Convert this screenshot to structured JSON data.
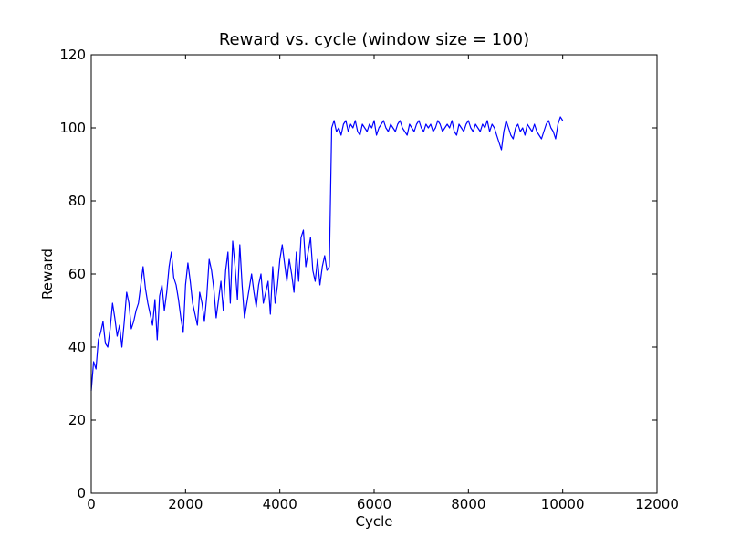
{
  "chart_data": {
    "type": "line",
    "title": "Reward vs. cycle (window size = 100)",
    "xlabel": "Cycle",
    "ylabel": "Reward",
    "xlim": [
      0,
      12000
    ],
    "ylim": [
      0,
      120
    ],
    "xticks": [
      0,
      2000,
      4000,
      6000,
      8000,
      10000,
      12000
    ],
    "yticks": [
      0,
      20,
      40,
      60,
      80,
      100,
      120
    ],
    "grid": false,
    "legend": "none",
    "series": [
      {
        "color": "#0000ff",
        "x": [
          0,
          50,
          100,
          150,
          200,
          250,
          300,
          350,
          400,
          450,
          500,
          550,
          600,
          650,
          700,
          750,
          800,
          850,
          900,
          950,
          1000,
          1050,
          1100,
          1150,
          1200,
          1250,
          1300,
          1350,
          1400,
          1450,
          1500,
          1550,
          1600,
          1650,
          1700,
          1750,
          1800,
          1850,
          1900,
          1950,
          2000,
          2050,
          2100,
          2150,
          2200,
          2250,
          2300,
          2350,
          2400,
          2450,
          2500,
          2550,
          2600,
          2650,
          2700,
          2750,
          2800,
          2850,
          2900,
          2950,
          3000,
          3050,
          3100,
          3150,
          3200,
          3250,
          3300,
          3350,
          3400,
          3450,
          3500,
          3550,
          3600,
          3650,
          3700,
          3750,
          3800,
          3850,
          3900,
          3950,
          4000,
          4050,
          4100,
          4150,
          4200,
          4250,
          4300,
          4350,
          4400,
          4450,
          4500,
          4550,
          4600,
          4650,
          4700,
          4750,
          4800,
          4850,
          4900,
          4950,
          5000,
          5050,
          5100,
          5150,
          5200,
          5250,
          5300,
          5350,
          5400,
          5450,
          5500,
          5550,
          5600,
          5650,
          5700,
          5750,
          5800,
          5850,
          5900,
          5950,
          6000,
          6050,
          6100,
          6150,
          6200,
          6250,
          6300,
          6350,
          6400,
          6450,
          6500,
          6550,
          6600,
          6650,
          6700,
          6750,
          6800,
          6850,
          6900,
          6950,
          7000,
          7050,
          7100,
          7150,
          7200,
          7250,
          7300,
          7350,
          7400,
          7450,
          7500,
          7550,
          7600,
          7650,
          7700,
          7750,
          7800,
          7850,
          7900,
          7950,
          8000,
          8050,
          8100,
          8150,
          8200,
          8250,
          8300,
          8350,
          8400,
          8450,
          8500,
          8550,
          8600,
          8650,
          8700,
          8750,
          8800,
          8850,
          8900,
          8950,
          9000,
          9050,
          9100,
          9150,
          9200,
          9250,
          9300,
          9350,
          9400,
          9450,
          9500,
          9550,
          9600,
          9650,
          9700,
          9750,
          9800,
          9850,
          9900,
          9950,
          10000
        ],
        "y": [
          28,
          36,
          34,
          42,
          44,
          47,
          41,
          40,
          45,
          52,
          48,
          43,
          46,
          40,
          47,
          55,
          52,
          45,
          47,
          50,
          52,
          57,
          62,
          56,
          52,
          49,
          46,
          53,
          42,
          54,
          57,
          50,
          55,
          62,
          66,
          59,
          57,
          53,
          48,
          44,
          57,
          63,
          58,
          52,
          49,
          46,
          55,
          52,
          47,
          54,
          64,
          61,
          56,
          48,
          53,
          58,
          50,
          61,
          66,
          52,
          69,
          62,
          53,
          68,
          57,
          48,
          52,
          56,
          60,
          55,
          51,
          57,
          60,
          52,
          55,
          58,
          49,
          62,
          52,
          57,
          64,
          68,
          63,
          58,
          64,
          60,
          55,
          66,
          58,
          70,
          72,
          62,
          66,
          70,
          61,
          58,
          64,
          57,
          62,
          65,
          61,
          62,
          100,
          102,
          99,
          100,
          98,
          101,
          102,
          99,
          101,
          100,
          102,
          99,
          98,
          101,
          100,
          99,
          101,
          100,
          102,
          98,
          100,
          101,
          102,
          100,
          99,
          101,
          100,
          99,
          101,
          102,
          100,
          99,
          98,
          101,
          100,
          99,
          101,
          102,
          100,
          99,
          101,
          100,
          101,
          99,
          100,
          102,
          101,
          99,
          100,
          101,
          100,
          102,
          99,
          98,
          101,
          100,
          99,
          101,
          102,
          100,
          99,
          101,
          100,
          99,
          101,
          100,
          102,
          99,
          101,
          100,
          98,
          96,
          94,
          99,
          102,
          100,
          98,
          97,
          100,
          101,
          99,
          100,
          98,
          101,
          100,
          99,
          101,
          99,
          98,
          97,
          99,
          101,
          102,
          100,
          99,
          97,
          101,
          103,
          102
        ]
      }
    ]
  }
}
